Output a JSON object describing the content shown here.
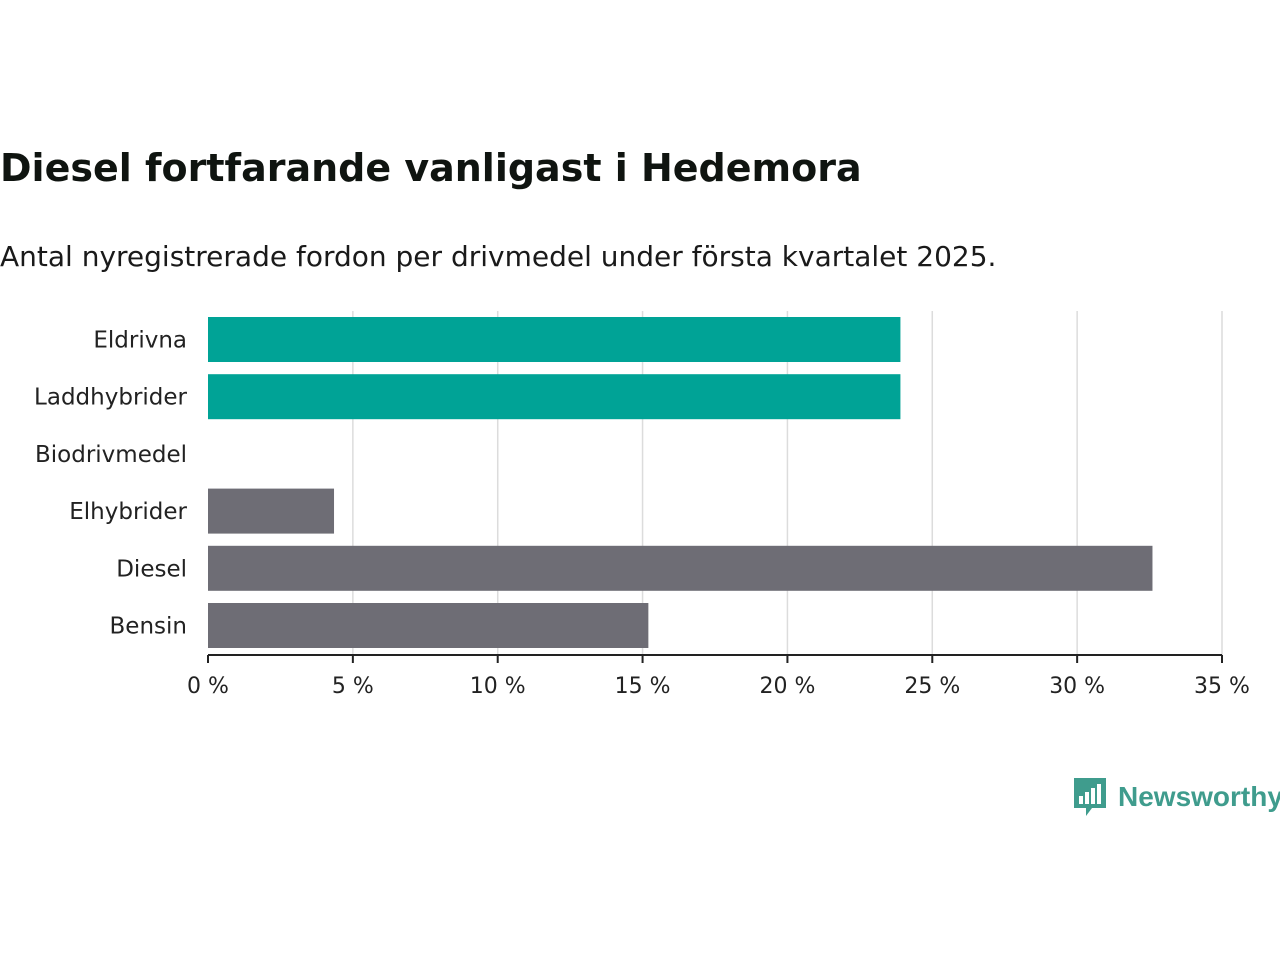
{
  "header": {
    "title": "Diesel fortfarande vanligast i Hedemora",
    "subtitle": "Antal nyregistrerade fordon per drivmedel under första kvartalet 2025."
  },
  "chart_data": {
    "type": "bar",
    "orientation": "horizontal",
    "categories": [
      "Eldrivna",
      "Laddhybrider",
      "Biodrivmedel",
      "Elhybrider",
      "Diesel",
      "Bensin"
    ],
    "values": [
      23.9,
      23.9,
      0,
      4.35,
      32.6,
      15.2
    ],
    "colors": [
      "#00a396",
      "#00a396",
      "#00a396",
      "#6e6d75",
      "#6e6d75",
      "#6e6d75"
    ],
    "xlim": [
      0,
      35
    ],
    "xticks": [
      0,
      5,
      10,
      15,
      20,
      25,
      30,
      35
    ],
    "xtick_labels": [
      "0 %",
      "5 %",
      "10 %",
      "15 %",
      "20 %",
      "25 %",
      "30 %",
      "35 %"
    ],
    "grid": "vertical",
    "xlabel": "",
    "ylabel": ""
  },
  "branding": {
    "logo_text": "Newsworthy",
    "logo_icon": "bar-chart-speech-bubble-icon",
    "logo_color": "#3f9c8d"
  }
}
